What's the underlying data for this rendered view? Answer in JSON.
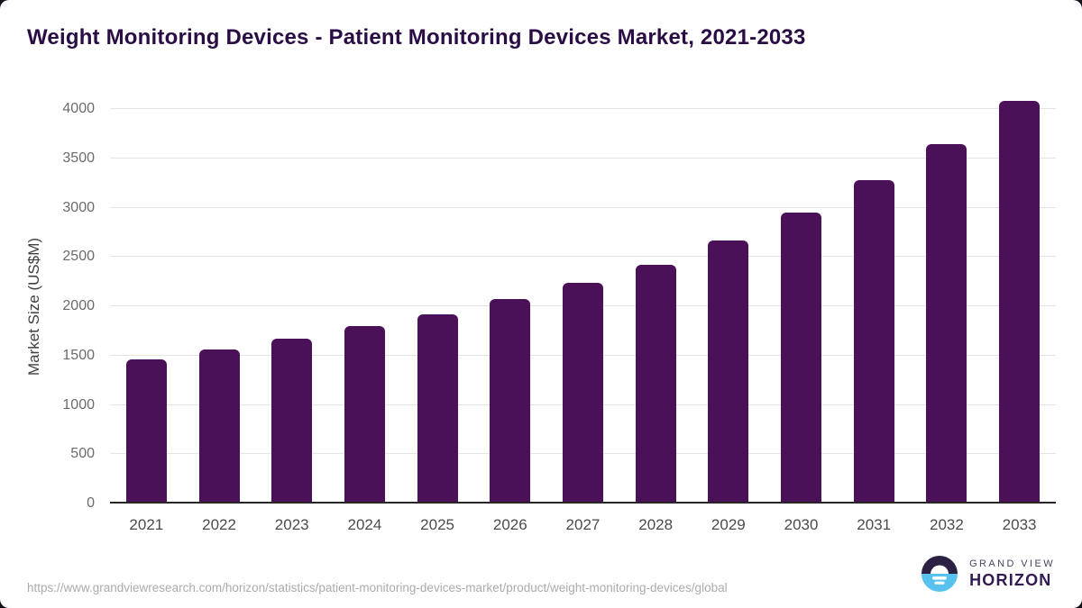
{
  "header": {
    "title": "Weight Monitoring Devices - Patient Monitoring Devices Market, 2021-2033"
  },
  "chart_data": {
    "type": "bar",
    "title": "Weight Monitoring Devices - Patient Monitoring Devices Market, 2021-2033",
    "categories": [
      "2021",
      "2022",
      "2023",
      "2024",
      "2025",
      "2026",
      "2027",
      "2028",
      "2029",
      "2030",
      "2031",
      "2032",
      "2033"
    ],
    "values": [
      1465,
      1558,
      1670,
      1798,
      1922,
      2071,
      2240,
      2424,
      2667,
      2950,
      3275,
      3648,
      4082
    ],
    "xlabel": "",
    "ylabel": "Market Size (US$M)",
    "ylim": [
      0,
      4000
    ],
    "yticks": [
      0,
      500,
      1000,
      1500,
      2000,
      2500,
      3000,
      3500,
      4000
    ],
    "grid": true,
    "legend_position": "none",
    "bar_color": "#4a1158"
  },
  "footer": {
    "source_url": "https://www.grandviewresearch.com/horizon/statistics/patient-monitoring-devices-market/product/weight-monitoring-devices/global",
    "brand": {
      "line1": "GRAND VIEW",
      "line2": "HORIZON"
    }
  },
  "colors": {
    "title_text": "#2a0d45",
    "bar": "#4a1158",
    "gridline": "#e4e4e4",
    "axis_line": "#262626",
    "y_tick_text": "#6b6b6b",
    "x_tick_text": "#4b4b4b",
    "url_text": "#ababab",
    "logo_dark": "#2c2145",
    "logo_blue": "#58c2ee"
  }
}
